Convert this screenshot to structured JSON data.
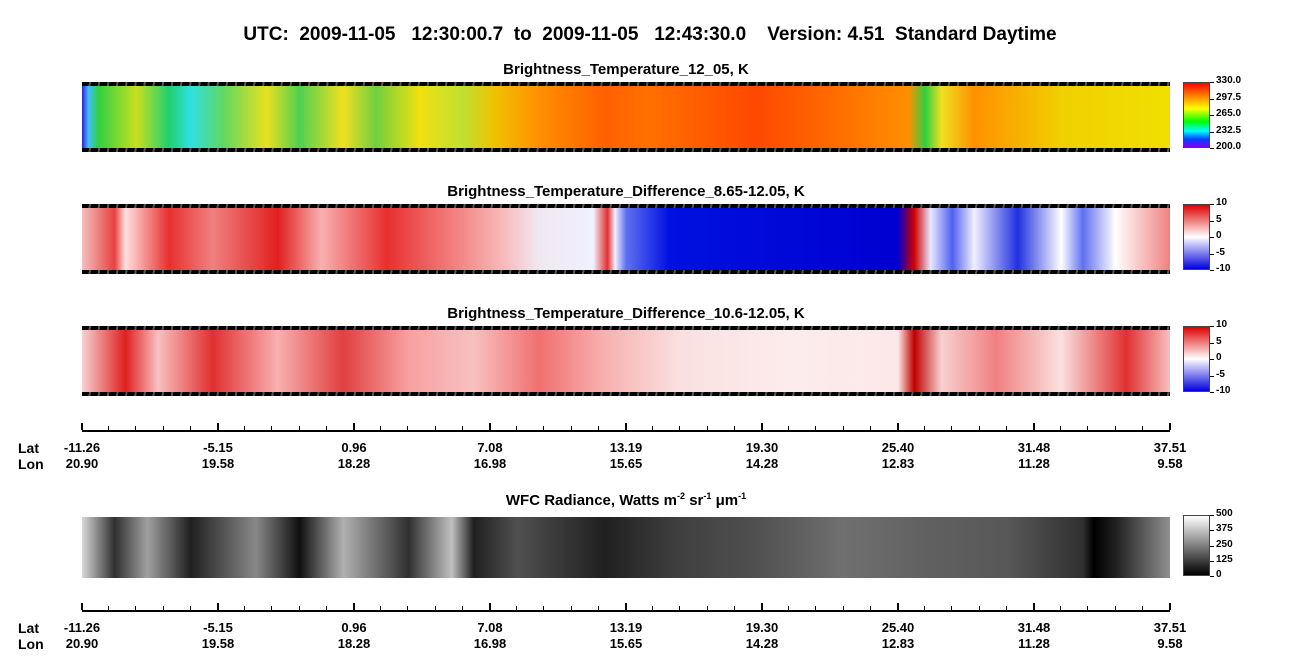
{
  "title": "UTC:  2009-11-05   12:30:00.7  to  2009-11-05   12:43:30.0    Version: 4.51  Standard Daytime",
  "panels": [
    {
      "title": "Brightness_Temperature_12_05, K",
      "colorbar": [
        "330.0",
        "297.5",
        "265.0",
        "232.5",
        "200.0"
      ]
    },
    {
      "title": "Brightness_Temperature_Difference_8.65-12.05, K",
      "colorbar": [
        "10",
        "5",
        "0",
        "-5",
        "-10"
      ]
    },
    {
      "title": "Brightness_Temperature_Difference_10.6-12.05, K",
      "colorbar": [
        "10",
        "5",
        "0",
        "-5",
        "-10"
      ]
    },
    {
      "title_parts": [
        "WFC Radiance, Watts m",
        "-2",
        " sr",
        "-1",
        " μm",
        "-1"
      ],
      "colorbar": [
        "500",
        "375",
        "250",
        "125",
        "0"
      ]
    }
  ],
  "axes": [
    {
      "lat_label": "Lat",
      "lon_label": "Lon",
      "lat": [
        "-11.26",
        "-5.15",
        "0.96",
        "7.08",
        "13.19",
        "19.30",
        "25.40",
        "31.48",
        "37.51"
      ],
      "lon": [
        "20.90",
        "19.58",
        "18.28",
        "16.98",
        "15.65",
        "14.28",
        "12.83",
        "11.28",
        "9.58"
      ]
    },
    {
      "lat_label": "Lat",
      "lon_label": "Lon",
      "lat": [
        "-11.26",
        "-5.15",
        "0.96",
        "7.08",
        "13.19",
        "19.30",
        "25.40",
        "31.48",
        "37.51"
      ],
      "lon": [
        "20.90",
        "19.58",
        "18.28",
        "16.98",
        "15.65",
        "14.28",
        "12.83",
        "11.28",
        "9.58"
      ]
    }
  ]
}
